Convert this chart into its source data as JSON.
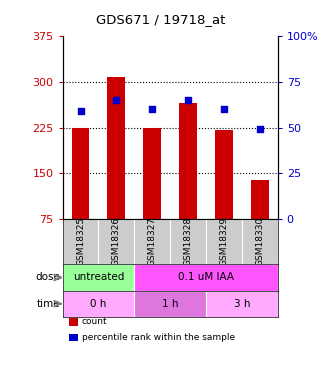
{
  "title": "GDS671 / 19718_at",
  "samples": [
    "GSM18325",
    "GSM18326",
    "GSM18327",
    "GSM18328",
    "GSM18329",
    "GSM18330"
  ],
  "bar_values": [
    224,
    308,
    225,
    265,
    221,
    140
  ],
  "bar_bottom": 75,
  "scatter_values": [
    59,
    65,
    60,
    65,
    60,
    49
  ],
  "ylim_left": [
    75,
    375
  ],
  "ylim_right": [
    0,
    100
  ],
  "yticks_left": [
    75,
    150,
    225,
    300,
    375
  ],
  "yticks_right": [
    0,
    25,
    50,
    75,
    100
  ],
  "ytick_labels_right": [
    "0",
    "25",
    "50",
    "75",
    "100%"
  ],
  "bar_color": "#cc0000",
  "scatter_color": "#0000cc",
  "grid_color": "#000000",
  "dose_labels": [
    {
      "text": "untreated",
      "span": [
        0,
        2
      ],
      "color": "#99ff99"
    },
    {
      "text": "0.1 uM IAA",
      "span": [
        2,
        6
      ],
      "color": "#ff55ff"
    }
  ],
  "time_labels": [
    {
      "text": "0 h",
      "span": [
        0,
        2
      ],
      "color": "#ffaaff"
    },
    {
      "text": "1 h",
      "span": [
        2,
        4
      ],
      "color": "#dd77dd"
    },
    {
      "text": "3 h",
      "span": [
        4,
        6
      ],
      "color": "#ffaaff"
    }
  ],
  "dose_row_label": "dose",
  "time_row_label": "time",
  "legend_items": [
    {
      "label": "count",
      "color": "#cc0000"
    },
    {
      "label": "percentile rank within the sample",
      "color": "#0000cc"
    }
  ],
  "tick_color_left": "#cc0000",
  "tick_color_right": "#0000cc",
  "sample_bg_color": "#cccccc",
  "sample_border_color": "#ffffff"
}
